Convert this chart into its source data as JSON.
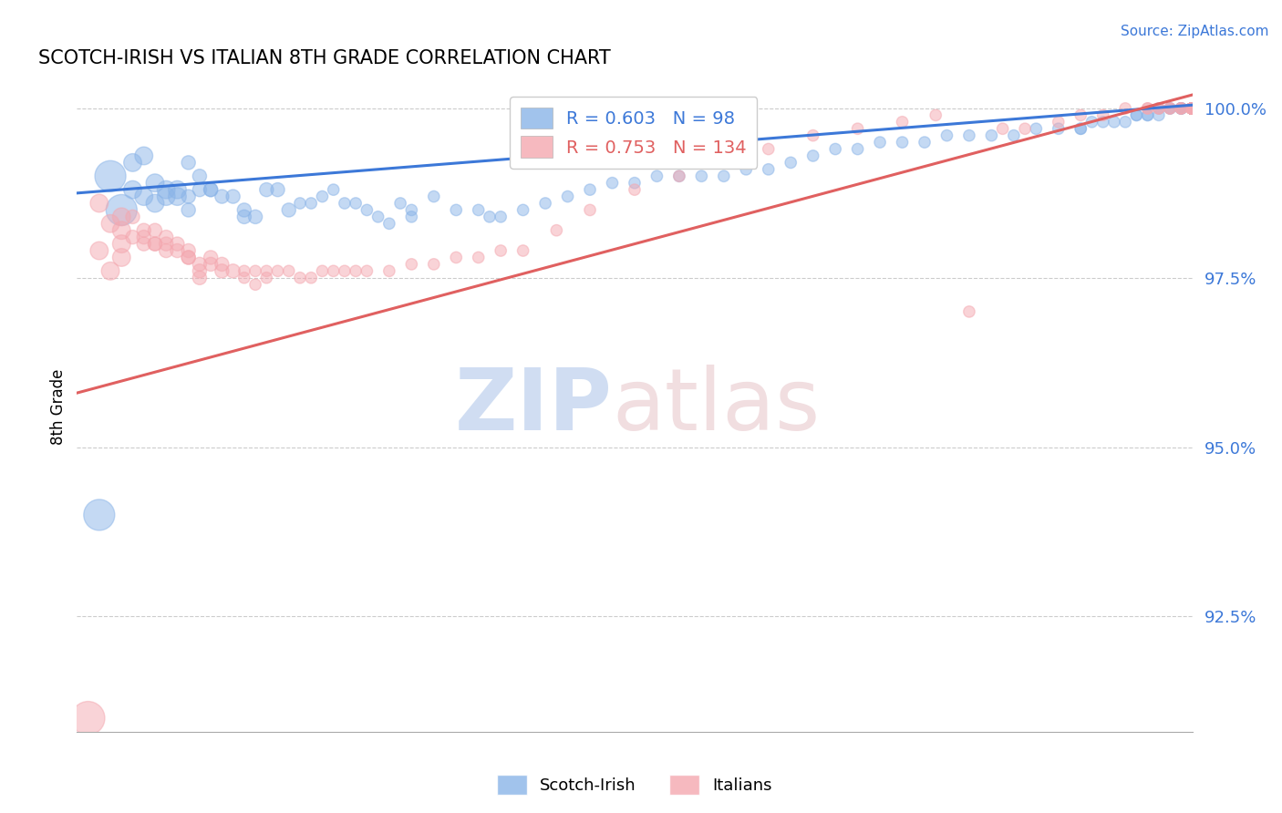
{
  "title": "SCOTCH-IRISH VS ITALIAN 8TH GRADE CORRELATION CHART",
  "source": "Source: ZipAtlas.com",
  "ylabel": "8th Grade",
  "ytick_labels": [
    "92.5%",
    "95.0%",
    "97.5%",
    "100.0%"
  ],
  "ytick_values": [
    0.925,
    0.95,
    0.975,
    1.0
  ],
  "xlim": [
    0.0,
    1.0
  ],
  "ylim": [
    0.908,
    1.004
  ],
  "blue_color": "#8ab4e8",
  "pink_color": "#f4a8b0",
  "blue_line_color": "#3c78d8",
  "pink_line_color": "#e06060",
  "legend_blue_label": "Scotch-Irish",
  "legend_pink_label": "Italians",
  "R_blue": 0.603,
  "N_blue": 98,
  "R_pink": 0.753,
  "N_pink": 134,
  "background_color": "#ffffff",
  "grid_color": "#cccccc",
  "blue_trend_x0": 0.0,
  "blue_trend_y0": 0.9875,
  "blue_trend_x1": 1.0,
  "blue_trend_y1": 1.0005,
  "pink_trend_x0": 0.0,
  "pink_trend_y0": 0.958,
  "pink_trend_x1": 1.0,
  "pink_trend_y1": 1.002,
  "blue_scatter_x": [
    0.02,
    0.03,
    0.04,
    0.05,
    0.05,
    0.06,
    0.06,
    0.07,
    0.07,
    0.08,
    0.08,
    0.09,
    0.09,
    0.1,
    0.1,
    0.1,
    0.11,
    0.11,
    0.12,
    0.12,
    0.13,
    0.14,
    0.15,
    0.15,
    0.16,
    0.17,
    0.18,
    0.19,
    0.2,
    0.21,
    0.22,
    0.23,
    0.24,
    0.25,
    0.26,
    0.27,
    0.28,
    0.29,
    0.3,
    0.3,
    0.32,
    0.34,
    0.36,
    0.37,
    0.38,
    0.4,
    0.42,
    0.44,
    0.46,
    0.48,
    0.5,
    0.52,
    0.54,
    0.56,
    0.58,
    0.6,
    0.62,
    0.64,
    0.66,
    0.68,
    0.7,
    0.72,
    0.74,
    0.76,
    0.78,
    0.8,
    0.82,
    0.84,
    0.86,
    0.88,
    0.9,
    0.9,
    0.91,
    0.92,
    0.93,
    0.94,
    0.95,
    0.95,
    0.96,
    0.96,
    0.97,
    0.97,
    0.98,
    0.98,
    0.99,
    0.99,
    0.99,
    0.99,
    1.0,
    1.0,
    1.0,
    1.0,
    1.0,
    1.0,
    1.0,
    1.0,
    1.0,
    1.0
  ],
  "blue_scatter_y": [
    0.94,
    0.99,
    0.985,
    0.988,
    0.992,
    0.987,
    0.993,
    0.986,
    0.989,
    0.988,
    0.987,
    0.988,
    0.987,
    0.985,
    0.987,
    0.992,
    0.99,
    0.988,
    0.988,
    0.988,
    0.987,
    0.987,
    0.985,
    0.984,
    0.984,
    0.988,
    0.988,
    0.985,
    0.986,
    0.986,
    0.987,
    0.988,
    0.986,
    0.986,
    0.985,
    0.984,
    0.983,
    0.986,
    0.984,
    0.985,
    0.987,
    0.985,
    0.985,
    0.984,
    0.984,
    0.985,
    0.986,
    0.987,
    0.988,
    0.989,
    0.989,
    0.99,
    0.99,
    0.99,
    0.99,
    0.991,
    0.991,
    0.992,
    0.993,
    0.994,
    0.994,
    0.995,
    0.995,
    0.995,
    0.996,
    0.996,
    0.996,
    0.996,
    0.997,
    0.997,
    0.997,
    0.997,
    0.998,
    0.998,
    0.998,
    0.998,
    0.999,
    0.999,
    0.999,
    0.999,
    0.999,
    1.0,
    1.0,
    1.0,
    1.0,
    1.0,
    1.0,
    1.0,
    1.0,
    1.0,
    1.0,
    1.0,
    1.0,
    1.0,
    1.0,
    1.0,
    1.0,
    1.0
  ],
  "pink_scatter_x": [
    0.01,
    0.02,
    0.02,
    0.03,
    0.03,
    0.04,
    0.04,
    0.04,
    0.04,
    0.05,
    0.05,
    0.06,
    0.06,
    0.06,
    0.07,
    0.07,
    0.07,
    0.08,
    0.08,
    0.08,
    0.09,
    0.09,
    0.1,
    0.1,
    0.1,
    0.11,
    0.11,
    0.11,
    0.12,
    0.12,
    0.13,
    0.13,
    0.14,
    0.15,
    0.15,
    0.16,
    0.16,
    0.17,
    0.17,
    0.18,
    0.19,
    0.2,
    0.21,
    0.22,
    0.23,
    0.24,
    0.25,
    0.26,
    0.28,
    0.3,
    0.32,
    0.34,
    0.36,
    0.38,
    0.4,
    0.43,
    0.46,
    0.5,
    0.54,
    0.58,
    0.62,
    0.66,
    0.7,
    0.74,
    0.77,
    0.8,
    0.83,
    0.85,
    0.88,
    0.9,
    0.92,
    0.94,
    0.96,
    0.96,
    0.97,
    0.97,
    0.98,
    0.98,
    0.99,
    0.99,
    0.99,
    1.0,
    1.0,
    1.0,
    1.0,
    1.0,
    1.0,
    1.0,
    1.0,
    1.0,
    1.0,
    1.0,
    1.0,
    1.0,
    1.0,
    1.0,
    1.0,
    1.0,
    1.0,
    1.0,
    1.0,
    1.0,
    1.0,
    1.0,
    1.0,
    1.0,
    1.0,
    1.0,
    1.0,
    1.0,
    1.0,
    1.0,
    1.0,
    1.0,
    1.0,
    1.0,
    1.0,
    1.0,
    1.0,
    1.0,
    1.0,
    1.0,
    1.0,
    1.0,
    1.0,
    1.0,
    1.0,
    1.0,
    1.0,
    1.0,
    1.0,
    1.0,
    1.0,
    1.0
  ],
  "pink_scatter_y": [
    0.91,
    0.986,
    0.979,
    0.983,
    0.976,
    0.984,
    0.98,
    0.978,
    0.982,
    0.984,
    0.981,
    0.982,
    0.98,
    0.981,
    0.982,
    0.98,
    0.98,
    0.981,
    0.979,
    0.98,
    0.98,
    0.979,
    0.979,
    0.978,
    0.978,
    0.977,
    0.976,
    0.975,
    0.978,
    0.977,
    0.976,
    0.977,
    0.976,
    0.976,
    0.975,
    0.974,
    0.976,
    0.975,
    0.976,
    0.976,
    0.976,
    0.975,
    0.975,
    0.976,
    0.976,
    0.976,
    0.976,
    0.976,
    0.976,
    0.977,
    0.977,
    0.978,
    0.978,
    0.979,
    0.979,
    0.982,
    0.985,
    0.988,
    0.99,
    0.992,
    0.994,
    0.996,
    0.997,
    0.998,
    0.999,
    0.97,
    0.997,
    0.997,
    0.998,
    0.999,
    0.999,
    1.0,
    1.0,
    1.0,
    1.0,
    1.0,
    1.0,
    1.0,
    1.0,
    1.0,
    1.0,
    1.0,
    1.0,
    1.0,
    1.0,
    1.0,
    1.0,
    1.0,
    1.0,
    1.0,
    1.0,
    1.0,
    1.0,
    1.0,
    1.0,
    1.0,
    1.0,
    1.0,
    1.0,
    1.0,
    1.0,
    1.0,
    1.0,
    1.0,
    1.0,
    1.0,
    1.0,
    1.0,
    1.0,
    1.0,
    1.0,
    1.0,
    1.0,
    1.0,
    1.0,
    1.0,
    1.0,
    1.0,
    1.0,
    1.0,
    1.0,
    1.0,
    1.0,
    1.0,
    1.0,
    1.0,
    1.0,
    1.0,
    1.0,
    1.0,
    1.0,
    1.0,
    1.0,
    1.0
  ]
}
